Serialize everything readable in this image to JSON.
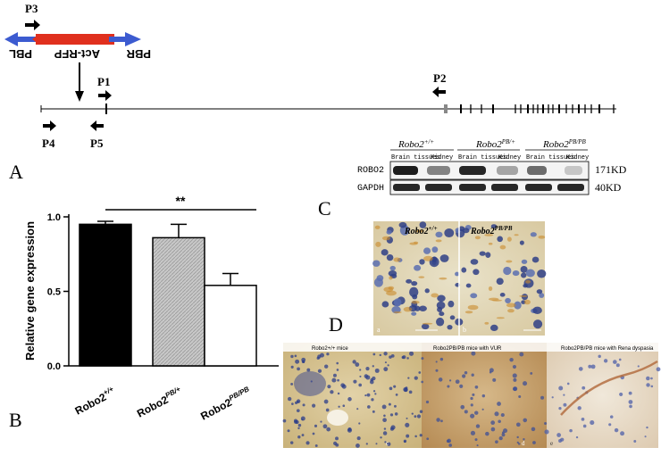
{
  "panels": {
    "a": "A",
    "b": "B",
    "c": "C",
    "d": "D"
  },
  "construct": {
    "left_label": "PBL",
    "right_label": "PBR",
    "middle_label": "Act-RFP",
    "primers": [
      "P3",
      "P1",
      "P2",
      "P4",
      "P5"
    ]
  },
  "western": {
    "genotypes": [
      "Robo2",
      "Robo2",
      "Robo2"
    ],
    "genotype_sup": [
      "+/+",
      "PB/+",
      "PB/PB"
    ],
    "tissue_labels": [
      "Brain tissues",
      "Kidney",
      "Brain tissues",
      "Kidney",
      "Brain tissues",
      "Kidney"
    ],
    "rows": [
      "ROBO2",
      "GAPDH"
    ],
    "sizes": [
      "171KD",
      "40KD"
    ]
  },
  "chart_data": {
    "type": "bar",
    "categories": [
      "Robo2+/+",
      "Robo2PB/+",
      "Robo2PB/PB"
    ],
    "category_base": [
      "Robo2",
      "Robo2",
      "Robo2"
    ],
    "category_sup": [
      "+/+",
      "PB/+",
      "PB/PB"
    ],
    "values": [
      0.95,
      0.86,
      0.54
    ],
    "errors": [
      0.02,
      0.09,
      0.08
    ],
    "colors": [
      "#000000",
      "#c6c6c6",
      "#ffffff"
    ],
    "ylabel": "Relative gene expression",
    "ylim": [
      0,
      1.0
    ],
    "yticks": [
      "0.0",
      "0.5",
      "1.0"
    ],
    "significance": "**"
  },
  "ihc": {
    "left_label": "Robo2",
    "left_sup": "+/+",
    "right_label": "Robo2",
    "right_sup": "PB/PB",
    "sub_a": "a",
    "sub_b": "b"
  },
  "histology": {
    "captions": [
      "Robo2+/+ mice",
      "Robo2PB/PB mice with VUR",
      "Robo2PB/PB mice with Rena dyspasia"
    ],
    "sub": [
      "c",
      "d",
      "e"
    ]
  }
}
